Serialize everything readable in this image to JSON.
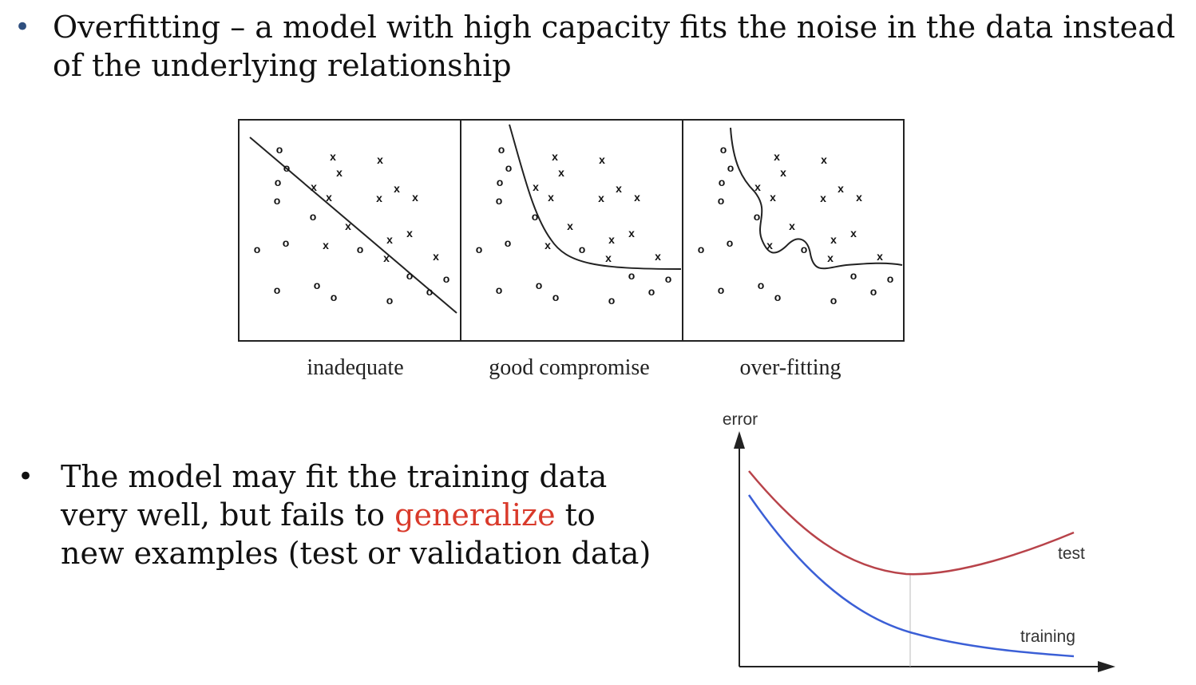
{
  "bullets": [
    {
      "text": "Overfitting – a model with high capacity fits the noise in the data instead of the underlying relationship"
    },
    {
      "pre": "The model may fit the training data very well, but fails to ",
      "highlight": "generalize",
      "post": " to new examples (test or validation data)"
    }
  ],
  "bullet_symbol": "•",
  "colors": {
    "bullet_accent": "#2f4f7f",
    "highlight": "#d93a2b",
    "test_curve": "#b8434a",
    "training_curve": "#3b5fd6"
  },
  "panels": [
    {
      "caption": "inadequate"
    },
    {
      "caption": "good compromise"
    },
    {
      "caption": "over-fitting"
    }
  ],
  "marks": {
    "o": "o",
    "x": "x"
  },
  "error_chart": {
    "y_axis_label": "error",
    "series": [
      {
        "name": "test"
      },
      {
        "name": "training"
      }
    ]
  }
}
